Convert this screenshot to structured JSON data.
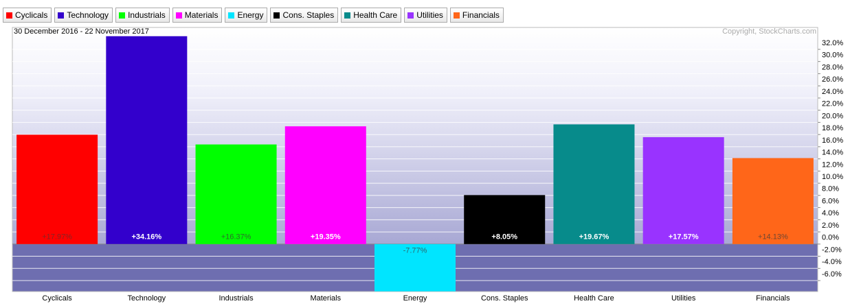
{
  "chart_data": {
    "type": "bar",
    "subtitle": "30 December 2016 - 22 November 2017",
    "annotation": "Copyright, StockCharts.com",
    "categories": [
      "Cyclicals",
      "Technology",
      "Industrials",
      "Materials",
      "Energy",
      "Cons. Staples",
      "Health Care",
      "Utilities",
      "Financials"
    ],
    "values": [
      17.97,
      34.16,
      16.37,
      19.35,
      -7.77,
      8.05,
      19.67,
      17.57,
      14.13
    ],
    "value_labels": [
      "+17.97%",
      "+34.16%",
      "+16.37%",
      "+19.35%",
      "-7.77%",
      "+8.05%",
      "+19.67%",
      "+17.57%",
      "+14.13%"
    ],
    "colors": [
      "#ff0000",
      "#3300cc",
      "#00ff00",
      "#ff00ff",
      "#00e5ff",
      "#000000",
      "#078b8b",
      "#9933ff",
      "#ff6619"
    ],
    "ylim": [
      -7.8,
      35.6
    ],
    "yticks": [
      {
        "value": -6,
        "label": "-6.0%"
      },
      {
        "value": -4,
        "label": "-4.0%"
      },
      {
        "value": -2,
        "label": "-2.0%"
      },
      {
        "value": 0,
        "label": "0.0%"
      },
      {
        "value": 2,
        "label": "2.0%"
      },
      {
        "value": 4,
        "label": "4.0%"
      },
      {
        "value": 6,
        "label": "6.0%"
      },
      {
        "value": 8,
        "label": "8.0%"
      },
      {
        "value": 10,
        "label": "10.0%"
      },
      {
        "value": 12,
        "label": "12.0%"
      },
      {
        "value": 14,
        "label": "14.0%"
      },
      {
        "value": 16,
        "label": "16.0%"
      },
      {
        "value": 18,
        "label": "18.0%"
      },
      {
        "value": 20,
        "label": "20.0%"
      },
      {
        "value": 22,
        "label": "22.0%"
      },
      {
        "value": 24,
        "label": "24.0%"
      },
      {
        "value": 26,
        "label": "26.0%"
      },
      {
        "value": 28,
        "label": "28.0%"
      },
      {
        "value": 30,
        "label": "30.0%"
      },
      {
        "value": 32,
        "label": "32.0%"
      }
    ],
    "grid": true,
    "legend": "top"
  }
}
